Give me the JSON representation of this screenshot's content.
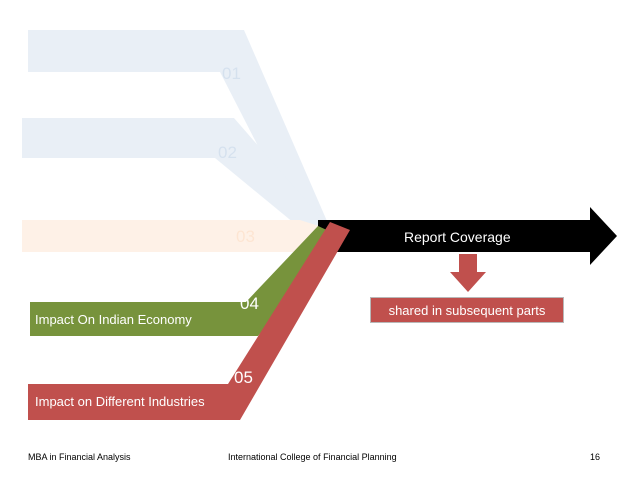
{
  "diagram": {
    "report_coverage": "Report Coverage",
    "shared_note": "shared in subsequent parts",
    "branches": [
      {
        "number": "01",
        "label": ""
      },
      {
        "number": "02",
        "label": ""
      },
      {
        "number": "03",
        "label": ""
      },
      {
        "number": "04",
        "label": "Impact On Indian Economy"
      },
      {
        "number": "05",
        "label": "Impact on Different Industries"
      }
    ]
  },
  "colors": {
    "arrow": "#000000",
    "green": "#77933c",
    "red": "#c0504d",
    "faded": "#dbe5f1"
  },
  "footer": {
    "left": "MBA in Financial Analysis",
    "center": "International College of Financial Planning",
    "page": "16"
  }
}
